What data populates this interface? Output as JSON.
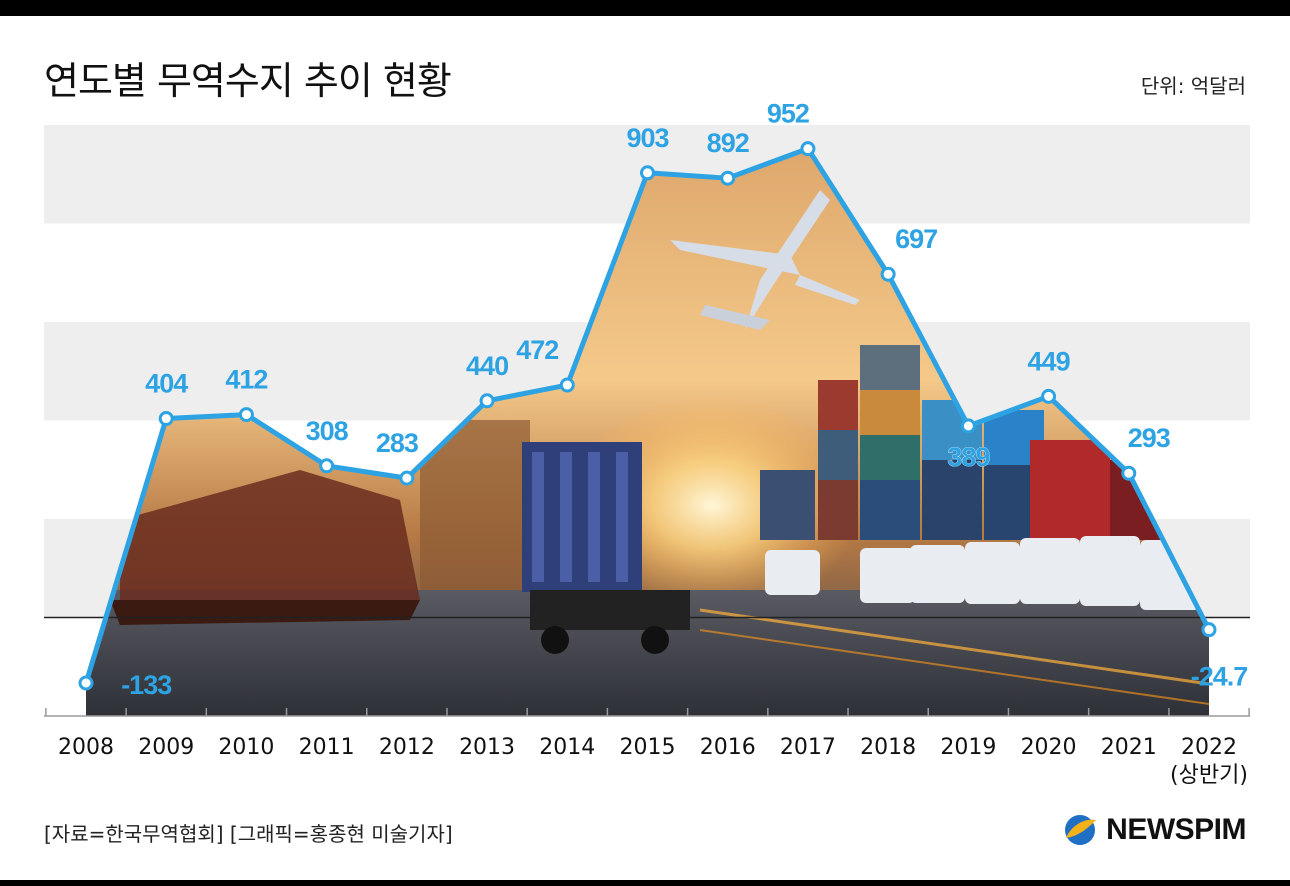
{
  "header": {
    "title": "연도별 무역수지 추이 현황",
    "unit": "단위: 억달러"
  },
  "footer": {
    "source": "[자료=한국무역협회] [그래픽=홍종현 미술기자]",
    "brand": "NEWSPIM"
  },
  "colors": {
    "line": "#2ea3e4",
    "band": "#eeeeee",
    "brand_accent": "#f3b21a",
    "brand_blue": "#1f6fc4"
  },
  "chart_data": {
    "type": "line",
    "x": [
      "2008",
      "2009",
      "2010",
      "2011",
      "2012",
      "2013",
      "2014",
      "2015",
      "2016",
      "2017",
      "2018",
      "2019",
      "2020",
      "2021",
      "2022"
    ],
    "x_sublabels": {
      "2022": "(상반기)"
    },
    "series": [
      {
        "values": [
          -133,
          404,
          412,
          308,
          283,
          440,
          472,
          903,
          892,
          952,
          697,
          389,
          449,
          293,
          -24.7
        ]
      }
    ],
    "value_labels": [
      "",
      "404",
      "412",
      "308",
      "283",
      "440",
      "472",
      "903",
      "892",
      "952",
      "697",
      "389",
      "449",
      "293",
      "-24.7"
    ],
    "extra_labels": [
      {
        "text": "-133",
        "near": "2009"
      }
    ],
    "ylim": [
      -200,
      1000
    ],
    "baseline": 0,
    "grid": "horizontal bands",
    "background": "photo collage of ships, cargo containers, trucks and an airplane under the line"
  }
}
